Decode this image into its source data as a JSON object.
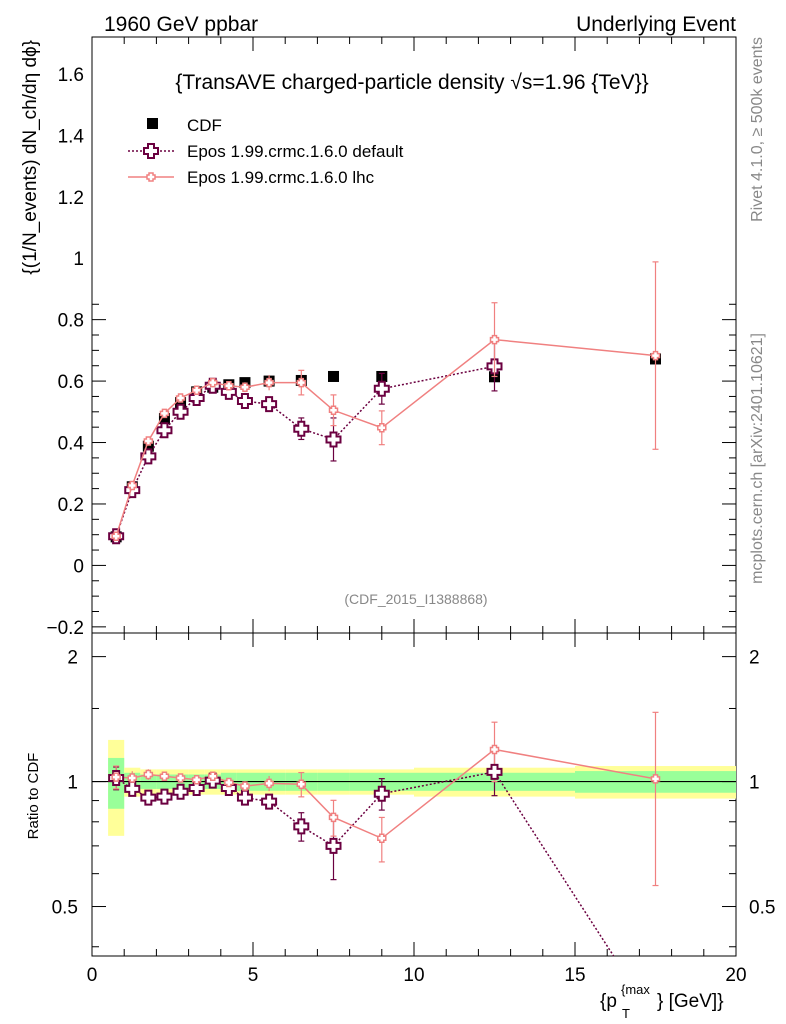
{
  "header": {
    "left": "1960 GeV ppbar",
    "right": "Underlying Event"
  },
  "side_labels": {
    "rivet": "Rivet 4.1.0, ≥ 500k events",
    "mcplots": "mcplots.cern.ch [arXiv:2401.10621]"
  },
  "chart_data": {
    "type": "scatter",
    "title": "{TransAVE charged-particle density √s=1.96 {TeV}}",
    "analysis_id": "(CDF_2015_I1388868)",
    "xlabel": {
      "main": "{p",
      "sub": "T",
      "sup": "{max",
      "tail": "} [GeV]}"
    },
    "ylabel": "{(1/N_events) dN_ch/dη dϕ}",
    "ratio_ylabel": "Ratio to CDF",
    "xlim": [
      0,
      20
    ],
    "ylim": [
      -0.22,
      1.72
    ],
    "ratio_ylim": [
      0.38,
      2.28
    ],
    "xticks": [
      0,
      5,
      10,
      15,
      20
    ],
    "yticks": [
      -0.2,
      0,
      0.2,
      0.4,
      0.6,
      0.8,
      1,
      1.2,
      1.4,
      1.6
    ],
    "ratio_yticks": [
      0.5,
      1,
      2
    ],
    "legend": [
      "CDF",
      "Epos 1.99.crmc.1.6.0 default",
      "Epos 1.99.crmc.1.6.0 lhc"
    ],
    "data": {
      "name": "CDF",
      "x": [
        0.75,
        1.25,
        1.75,
        2.25,
        2.75,
        3.25,
        3.75,
        4.25,
        4.75,
        5.5,
        6.5,
        7.5,
        9.0,
        12.5,
        17.5
      ],
      "y": [
        0.093,
        0.256,
        0.388,
        0.478,
        0.53,
        0.565,
        0.58,
        0.588,
        0.595,
        0.6,
        0.602,
        0.615,
        0.615,
        0.614,
        0.672
      ],
      "band_edges": [
        0.5,
        1.0,
        1.5,
        2.0,
        2.5,
        3.0,
        3.5,
        4.0,
        4.5,
        5.0,
        6.0,
        7.0,
        8.0,
        10.0,
        15.0,
        20.0
      ],
      "band_green": [
        0.14,
        0.05,
        0.04,
        0.04,
        0.04,
        0.04,
        0.04,
        0.05,
        0.05,
        0.05,
        0.05,
        0.05,
        0.05,
        0.05,
        0.06
      ],
      "band_yellow": [
        0.26,
        0.08,
        0.07,
        0.07,
        0.07,
        0.07,
        0.07,
        0.07,
        0.07,
        0.07,
        0.07,
        0.07,
        0.07,
        0.08,
        0.09
      ]
    },
    "series": [
      {
        "name": "Epos 1.99.crmc.1.6.0 default",
        "color": "#6b0040",
        "x": [
          0.75,
          1.25,
          1.75,
          2.25,
          2.75,
          3.25,
          3.75,
          4.25,
          4.75,
          5.5,
          6.5,
          7.5,
          9.0,
          12.5
        ],
        "y": [
          0.095,
          0.245,
          0.355,
          0.44,
          0.5,
          0.545,
          0.585,
          0.565,
          0.535,
          0.525,
          0.445,
          0.41,
          0.575,
          0.648
        ],
        "err": [
          0.006,
          0.01,
          0.012,
          0.012,
          0.013,
          0.014,
          0.015,
          0.015,
          0.016,
          0.02,
          0.035,
          0.07,
          0.05,
          0.08
        ],
        "ratio_x": [
          0.75,
          1.25,
          1.75,
          2.25,
          2.75,
          3.25,
          3.75,
          4.25,
          4.75,
          5.5,
          6.5,
          7.5,
          9.0,
          12.5,
          16.2
        ],
        "ratio": [
          1.02,
          0.96,
          0.915,
          0.92,
          0.945,
          0.965,
          1.005,
          0.965,
          0.915,
          0.895,
          0.78,
          0.7,
          0.935,
          1.055,
          0.38
        ]
      },
      {
        "name": "Epos 1.99.crmc.1.6.0 lhc",
        "color": "#f08080",
        "x": [
          0.75,
          1.25,
          1.75,
          2.25,
          2.75,
          3.25,
          3.75,
          4.25,
          4.75,
          5.5,
          6.5,
          7.5,
          9.0,
          12.5,
          17.5
        ],
        "y": [
          0.095,
          0.26,
          0.405,
          0.495,
          0.545,
          0.57,
          0.595,
          0.585,
          0.58,
          0.595,
          0.595,
          0.505,
          0.448,
          0.735,
          0.683
        ],
        "err": [
          0.006,
          0.01,
          0.012,
          0.012,
          0.013,
          0.014,
          0.015,
          0.015,
          0.016,
          0.025,
          0.04,
          0.05,
          0.055,
          0.12,
          0.305
        ],
        "ratio_x": [
          0.75,
          1.25,
          1.75,
          2.25,
          2.75,
          3.25,
          3.75,
          4.25,
          4.75,
          5.5,
          6.5,
          7.5,
          9.0,
          12.5,
          17.5
        ],
        "ratio": [
          1.025,
          1.02,
          1.04,
          1.03,
          1.02,
          1.01,
          1.03,
          0.995,
          0.975,
          0.99,
          0.985,
          0.82,
          0.73,
          1.195,
          1.015
        ]
      }
    ]
  }
}
